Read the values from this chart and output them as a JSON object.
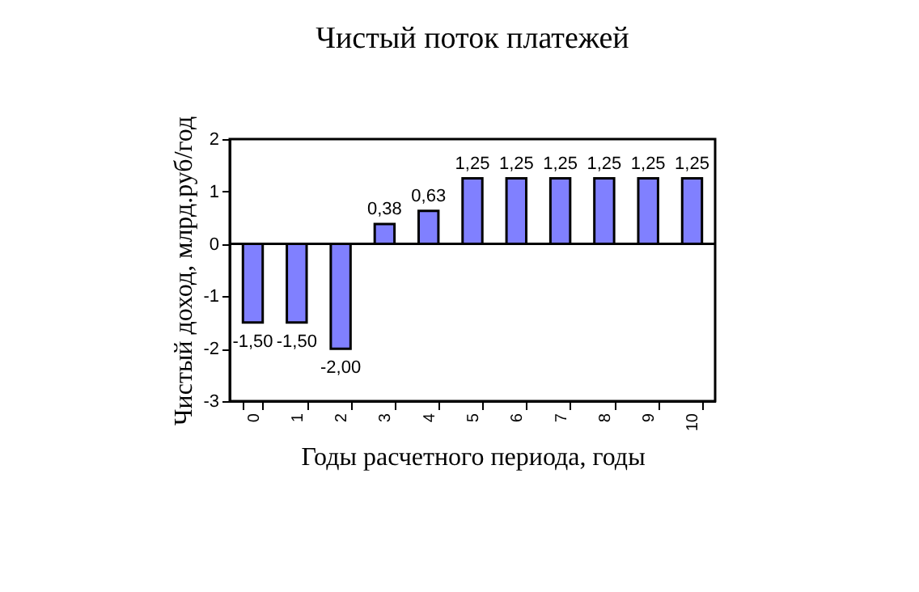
{
  "chart_data": {
    "type": "bar",
    "title": "Чистый поток платежей",
    "xlabel": "Годы расчетного периода, годы",
    "ylabel": "Чистый доход, млрд.руб/год",
    "categories": [
      "0",
      "1",
      "2",
      "3",
      "4",
      "5",
      "6",
      "7",
      "8",
      "9",
      "10"
    ],
    "values": [
      -1.5,
      -1.5,
      -2.0,
      0.38,
      0.63,
      1.25,
      1.25,
      1.25,
      1.25,
      1.25,
      1.25
    ],
    "value_labels": [
      "-1,50",
      "-1,50",
      "-2,00",
      "0,38",
      "0,63",
      "1,25",
      "1,25",
      "1,25",
      "1,25",
      "1,25",
      "1,25"
    ],
    "color": "#8080ff",
    "ylim": [
      -3,
      2
    ],
    "yticks": [
      -3,
      -2,
      -1,
      0,
      1,
      2
    ]
  }
}
